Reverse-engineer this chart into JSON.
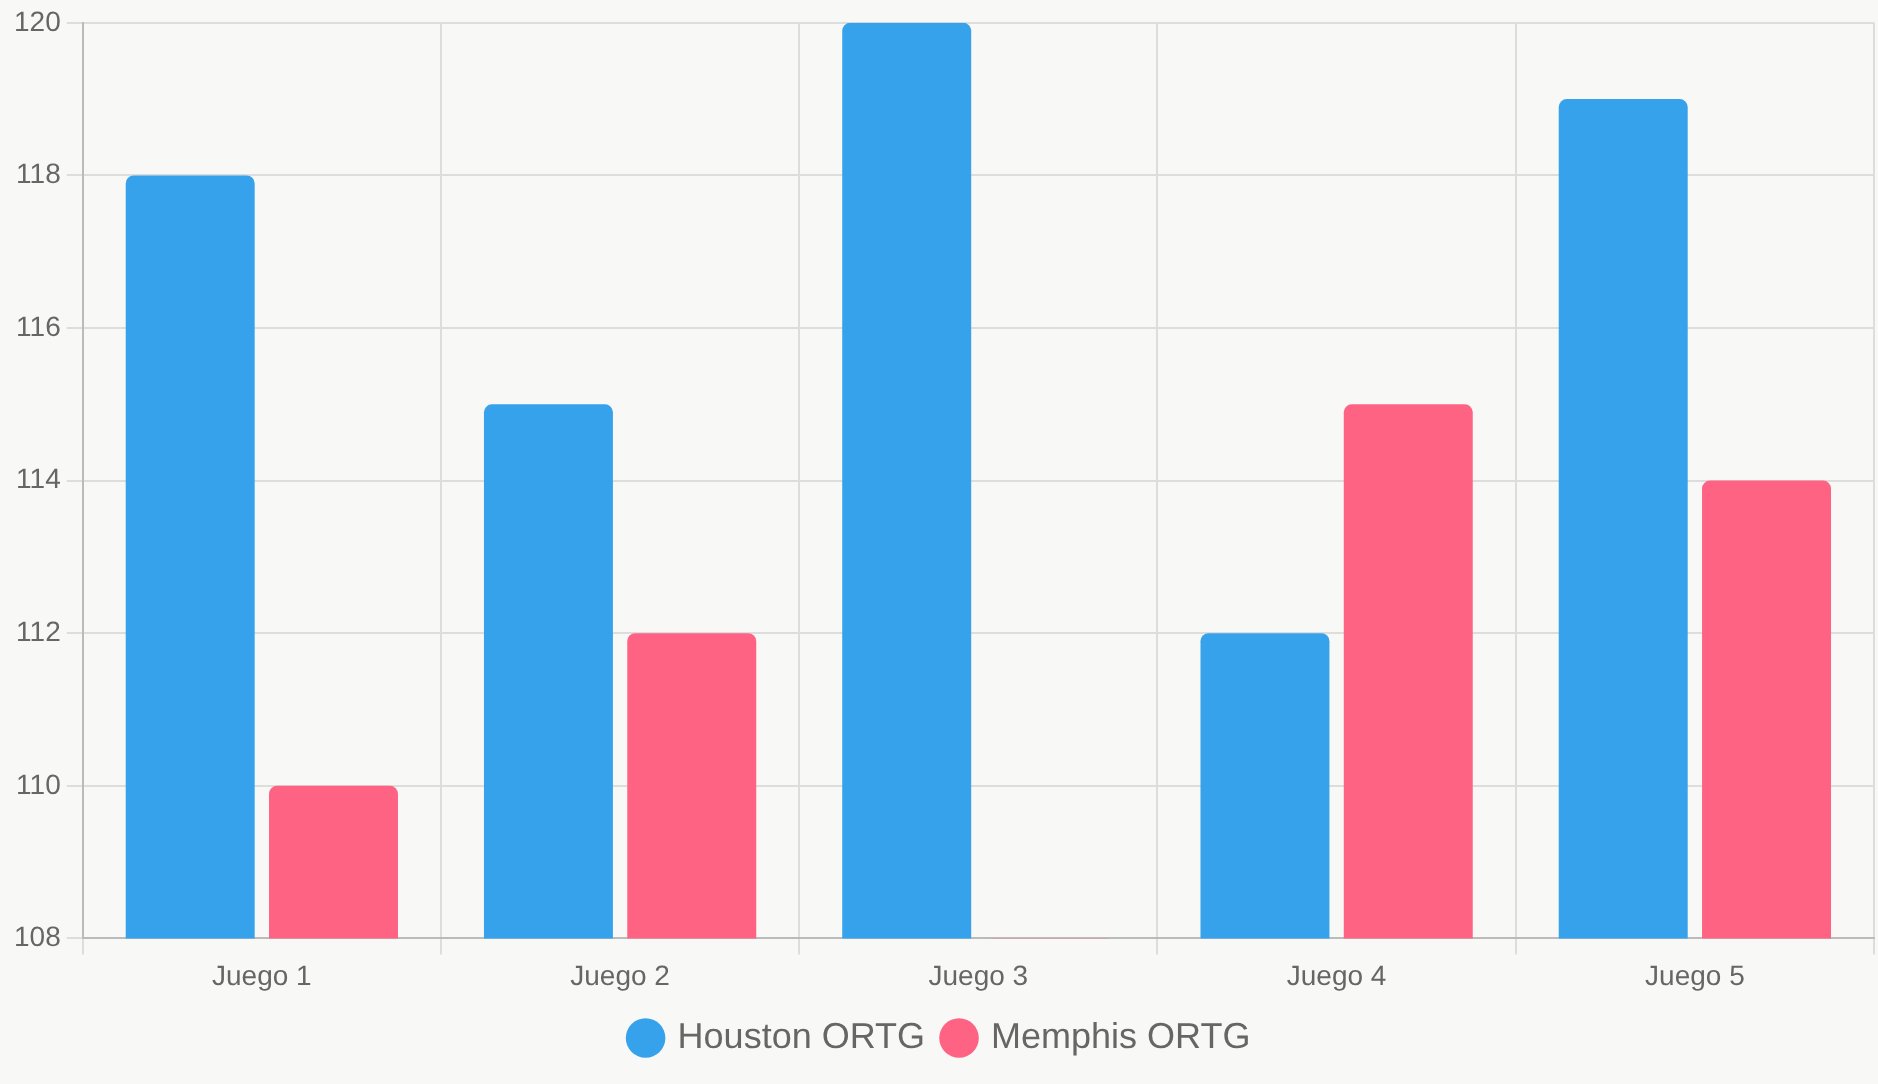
{
  "chart_data": {
    "type": "bar",
    "categories": [
      "Juego 1",
      "Juego 2",
      "Juego 3",
      "Juego 4",
      "Juego 5"
    ],
    "series": [
      {
        "name": "Houston ORTG",
        "color": "#36a2eb",
        "values": [
          118,
          115,
          120,
          112,
          119
        ]
      },
      {
        "name": "Memphis ORTG",
        "color": "#ff6384",
        "values": [
          110,
          112,
          108,
          115,
          114
        ]
      }
    ],
    "ylim": [
      108,
      120
    ],
    "yticks": [
      108,
      110,
      112,
      114,
      116,
      118,
      120
    ],
    "grid": true,
    "legend": "bottom"
  }
}
